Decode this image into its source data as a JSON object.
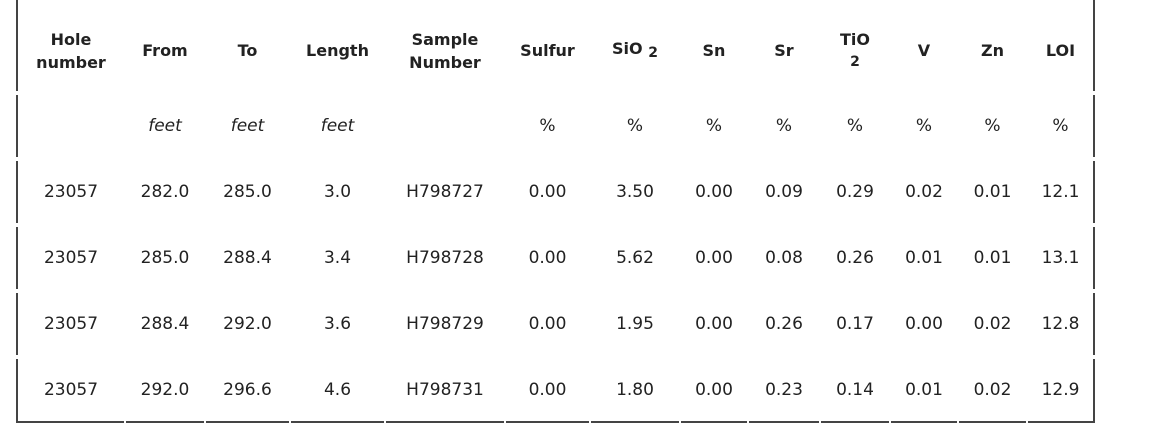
{
  "table": {
    "headers": [
      "Hole number",
      "From",
      "To",
      "Length",
      "Sample Number",
      "Sulfur",
      {
        "text": "SiO",
        "sub": "2"
      },
      "Sn",
      "Sr",
      {
        "text": "TiO",
        "sub": "2"
      },
      "V",
      "Zn",
      "LOI"
    ],
    "units": [
      null,
      "feet",
      "feet",
      "feet",
      null,
      "%",
      "%",
      "%",
      "%",
      "%",
      "%",
      "%",
      "%"
    ],
    "rows": [
      [
        "23057",
        "282.0",
        "285.0",
        "3.0",
        "H798727",
        "0.00",
        "3.50",
        "0.00",
        "0.09",
        "0.29",
        "0.02",
        "0.01",
        "12.1"
      ],
      [
        "23057",
        "285.0",
        "288.4",
        "3.4",
        "H798728",
        "0.00",
        "5.62",
        "0.00",
        "0.08",
        "0.26",
        "0.01",
        "0.01",
        "13.1"
      ],
      [
        "23057",
        "288.4",
        "292.0",
        "3.6",
        "H798729",
        "0.00",
        "1.95",
        "0.00",
        "0.26",
        "0.17",
        "0.00",
        "0.02",
        "12.8"
      ],
      [
        "23057",
        "292.0",
        "296.6",
        "4.6",
        "H798731",
        "0.00",
        "1.80",
        "0.00",
        "0.23",
        "0.14",
        "0.01",
        "0.02",
        "12.9"
      ]
    ]
  }
}
